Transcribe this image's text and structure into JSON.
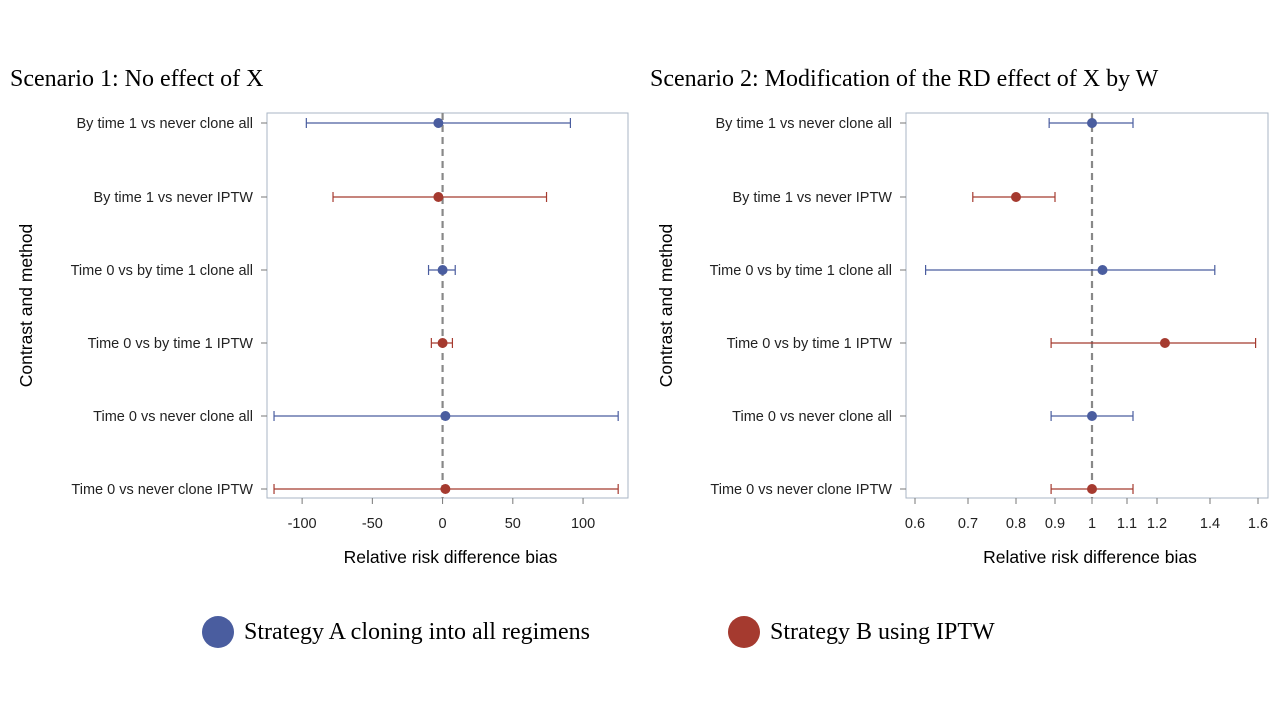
{
  "chart_data": [
    {
      "type": "forest",
      "title": "Scenario 1: No effect of X",
      "xlabel": "Relative risk difference bias",
      "ylabel": "Contrast and method",
      "xlim": [
        -125,
        132
      ],
      "xticks": [
        -100,
        -50,
        0,
        50,
        100
      ],
      "reference_line": 0,
      "grid": false,
      "rows": [
        {
          "label": "By time 1 vs never clone all",
          "series": "Strategy A cloning into all regimens",
          "estimate": -3,
          "lower": -97,
          "upper": 91
        },
        {
          "label": "By time 1 vs never IPTW",
          "series": "Strategy B using IPTW",
          "estimate": -3,
          "lower": -78,
          "upper": 74
        },
        {
          "label": "Time 0 vs by time 1 clone all",
          "series": "Strategy A cloning into all regimens",
          "estimate": 0,
          "lower": -10,
          "upper": 9
        },
        {
          "label": "Time 0 vs by time 1 IPTW",
          "series": "Strategy B using IPTW",
          "estimate": 0,
          "lower": -8,
          "upper": 7
        },
        {
          "label": "Time 0 vs never clone all",
          "series": "Strategy A cloning into all regimens",
          "estimate": 2,
          "lower": -120,
          "upper": 125
        },
        {
          "label": "Time 0 vs never clone IPTW",
          "series": "Strategy B using IPTW",
          "estimate": 2,
          "lower": -120,
          "upper": 125
        }
      ]
    },
    {
      "type": "forest",
      "title": "Scenario 2: Modification of the RD effect of X by W",
      "xlabel": "Relative risk difference bias",
      "ylabel": "Contrast and method",
      "xlim": [
        0.58,
        1.62
      ],
      "xticks": [
        0.6,
        0.7,
        0.8,
        0.9,
        1,
        1.1,
        1.2,
        1.4,
        1.6
      ],
      "xtick_labels": [
        "0.6",
        "0.7",
        "0.8",
        "0.9",
        "1",
        "1.1",
        "1.2",
        "1.4",
        "1.6"
      ],
      "reference_line": 1,
      "grid": false,
      "rows": [
        {
          "label": "By time 1 vs never clone all",
          "series": "Strategy A cloning into all regimens",
          "estimate": 1.0,
          "lower": 0.885,
          "upper": 1.12
        },
        {
          "label": "By time 1 vs never IPTW",
          "series": "Strategy B using IPTW",
          "estimate": 0.8,
          "lower": 0.71,
          "upper": 0.9
        },
        {
          "label": "Time 0 vs by time 1 clone all",
          "series": "Strategy A cloning into all regimens",
          "estimate": 1.03,
          "lower": 0.62,
          "upper": 1.42
        },
        {
          "label": "Time 0 vs by time 1 IPTW",
          "series": "Strategy B using IPTW",
          "estimate": 1.23,
          "lower": 0.89,
          "upper": 1.59
        },
        {
          "label": "Time 0 vs never clone all",
          "series": "Strategy A cloning into all regimens",
          "estimate": 1.0,
          "lower": 0.89,
          "upper": 1.12
        },
        {
          "label": "Time 0 vs never clone IPTW",
          "series": "Strategy B using IPTW",
          "estimate": 1.0,
          "lower": 0.89,
          "upper": 1.12
        }
      ]
    }
  ],
  "legend": {
    "items": [
      {
        "label": "Strategy A cloning into all regimens",
        "color": "#4a5d9f"
      },
      {
        "label": "Strategy B using IPTW",
        "color": "#a53a2f"
      }
    ]
  },
  "colors": {
    "Strategy A cloning into all regimens": "#4a5d9f",
    "Strategy B using IPTW": "#a53a2f",
    "reference_line": "#888888",
    "frame": "#a9b6c4"
  }
}
